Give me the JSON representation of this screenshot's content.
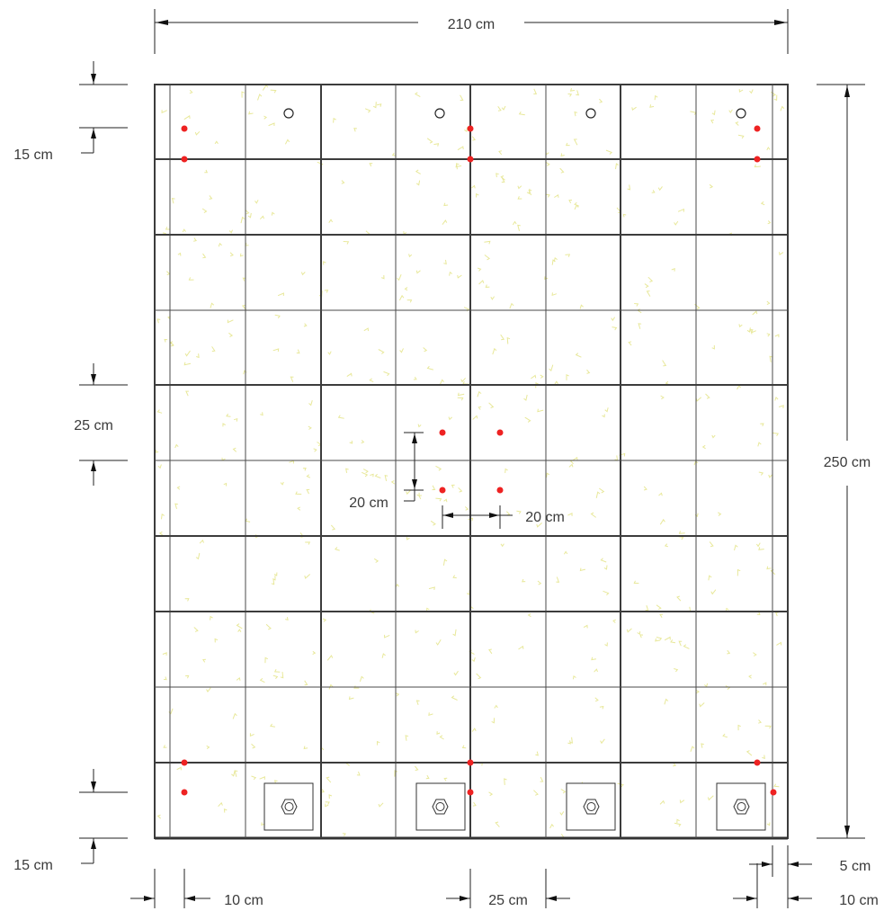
{
  "drawing": {
    "labels": {
      "width_total": "210 cm",
      "height_total": "250 cm",
      "top_edge": "15 cm",
      "mid_spacing_vertical": "25 cm",
      "bottom_edge": "15 cm",
      "bolt_vertical": "20 cm",
      "bolt_horizontal": "20 cm",
      "left_offset": "10 cm",
      "grid_spacing": "25 cm",
      "right_inner": "5 cm",
      "right_offset": "10 cm"
    },
    "colors": {
      "anchor_dot": "#ee2222",
      "concrete_speck": "#e8e89a",
      "grid_line": "#3c3c3c"
    },
    "icons": {
      "top_holes": "circle-hole-icon",
      "base_plates": "anchor-bolt-plate-icon"
    }
  }
}
